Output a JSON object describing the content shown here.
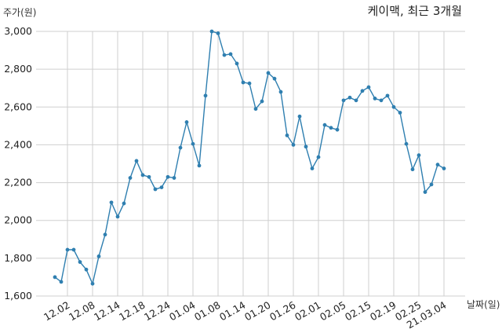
{
  "chart_data": {
    "type": "line",
    "title": "케이맥, 최근 3개월",
    "ylabel": "주가(원)",
    "xlabel": "날짜(일)",
    "ylim": [
      1600,
      3000
    ],
    "yticks": [
      "1,600",
      "1,800",
      "2,000",
      "2,200",
      "2,400",
      "2,600",
      "2,800",
      "3,000"
    ],
    "ytick_values": [
      1600,
      1800,
      2000,
      2200,
      2400,
      2600,
      2800,
      3000
    ],
    "xticks": [
      "12.02",
      "12.08",
      "12.14",
      "12.18",
      "12.24",
      "01.04",
      "01.08",
      "01.14",
      "01.20",
      "01.26",
      "02.01",
      "02.05",
      "02.15",
      "02.19",
      "02.25",
      "21.03.04"
    ],
    "xtick_index": [
      2,
      6,
      10,
      14,
      18,
      22,
      26,
      30,
      34,
      38,
      42,
      46,
      50,
      54,
      58,
      62
    ],
    "grid": true,
    "colors": {
      "line": "#2f7fb0",
      "grid": "#cfcfcf"
    },
    "series": [
      {
        "values": [
          1700,
          1675,
          1845,
          1845,
          1780,
          1740,
          1665,
          1810,
          1925,
          2095,
          2020,
          2090,
          2225,
          2315,
          2240,
          2230,
          2165,
          2175,
          2230,
          2225,
          2385,
          2520,
          2405,
          2290,
          2660,
          3000,
          2990,
          2875,
          2880,
          2830,
          2730,
          2725,
          2590,
          2630,
          2780,
          2750,
          2680,
          2450,
          2400,
          2550,
          2390,
          2275,
          2335,
          2505,
          2490,
          2480,
          2635,
          2650,
          2635,
          2685,
          2705,
          2645,
          2635,
          2660,
          2600,
          2570,
          2405,
          2270,
          2345,
          2150,
          2190,
          2295,
          2275
        ]
      }
    ]
  }
}
